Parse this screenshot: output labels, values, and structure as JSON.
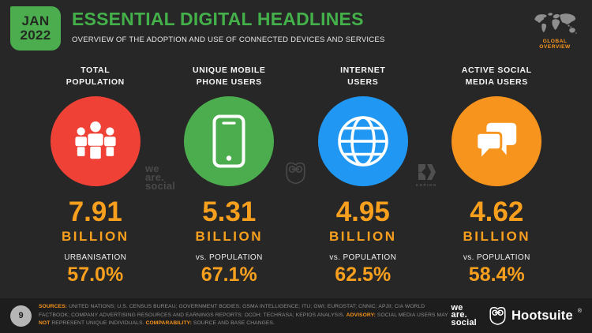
{
  "header": {
    "date": {
      "line1": "JAN",
      "line2": "2022"
    },
    "title": "ESSENTIAL DIGITAL HEADLINES",
    "subtitle": "OVERVIEW OF THE ADOPTION AND USE OF CONNECTED DEVICES AND SERVICES",
    "region": "GLOBAL OVERVIEW"
  },
  "colors": {
    "background": "#272727",
    "footer_background": "#1D1D1D",
    "green": "#4BAD4E",
    "title_green": "#43B04A",
    "orange_accent": "#F7941D",
    "stat_orange": "#F8A01E",
    "red_circle": "#EF4136",
    "blue_circle": "#2098F3"
  },
  "stats": [
    {
      "label_line1": "TOTAL",
      "label_line2": "POPULATION",
      "icon": "people-icon",
      "circle_color": "#EF4136",
      "value": "7.91",
      "unit": "BILLION",
      "sub_label": "URBANISATION",
      "sub_value": "57.0%"
    },
    {
      "label_line1": "UNIQUE MOBILE",
      "label_line2": "PHONE USERS",
      "icon": "mobile-phone-icon",
      "circle_color": "#4BAD4E",
      "value": "5.31",
      "unit": "BILLION",
      "sub_label": "vs. POPULATION",
      "sub_value": "67.1%"
    },
    {
      "label_line1": "INTERNET",
      "label_line2": "USERS",
      "icon": "globe-icon",
      "circle_color": "#2098F3",
      "value": "4.95",
      "unit": "BILLION",
      "sub_label": "vs. POPULATION",
      "sub_value": "62.5%"
    },
    {
      "label_line1": "ACTIVE SOCIAL",
      "label_line2": "MEDIA USERS",
      "icon": "chat-bubbles-icon",
      "circle_color": "#F7941D",
      "value": "4.62",
      "unit": "BILLION",
      "sub_label": "vs. POPULATION",
      "sub_value": "58.4%"
    }
  ],
  "watermarks": {
    "we_are_social": {
      "line1": "we",
      "line2": "are.",
      "line3": "social"
    },
    "kepios_label": "KEPIOS"
  },
  "footer": {
    "page_number": "9",
    "sources_segments": [
      {
        "text": "SOURCES:",
        "highlight": true
      },
      {
        "text": " UNITED NATIONS; U.S. CENSUS BUREAU; GOVERNMENT BODIES; GSMA INTELLIGENCE; ITU; GWI; EUROSTAT; CNNIC; APJII; CIA WORLD FACTBOOK; COMPANY ADVERTISING RESOURCES AND EARNINGS REPORTS; OCDH; TECHRASA; KEPIOS ANALYSIS. ",
        "highlight": false
      },
      {
        "text": "ADVISORY:",
        "highlight": true
      },
      {
        "text": " SOCIAL MEDIA USERS MAY ",
        "highlight": false
      },
      {
        "text": "NOT",
        "highlight": true
      },
      {
        "text": " REPRESENT UNIQUE INDIVIDUALS. ",
        "highlight": false
      },
      {
        "text": "COMPARABILITY:",
        "highlight": true
      },
      {
        "text": " SOURCE AND BASE CHANGES.",
        "highlight": false
      }
    ],
    "we_are_social": {
      "line1": "we",
      "line2": "are.",
      "line3": "social"
    },
    "hootsuite": "Hootsuite",
    "hootsuite_reg": "®"
  },
  "chart_data": {
    "type": "table",
    "title": "ESSENTIAL DIGITAL HEADLINES",
    "subtitle": "OVERVIEW OF THE ADOPTION AND USE OF CONNECTED DEVICES AND SERVICES",
    "period": "JAN 2022",
    "scope": "GLOBAL OVERVIEW",
    "categories": [
      "TOTAL POPULATION",
      "UNIQUE MOBILE PHONE USERS",
      "INTERNET USERS",
      "ACTIVE SOCIAL MEDIA USERS"
    ],
    "values_billions": [
      7.91,
      5.31,
      4.95,
      4.62
    ],
    "secondary_labels": [
      "URBANISATION",
      "vs. POPULATION",
      "vs. POPULATION",
      "vs. POPULATION"
    ],
    "secondary_values_percent": [
      57.0,
      67.1,
      62.5,
      58.4
    ]
  }
}
